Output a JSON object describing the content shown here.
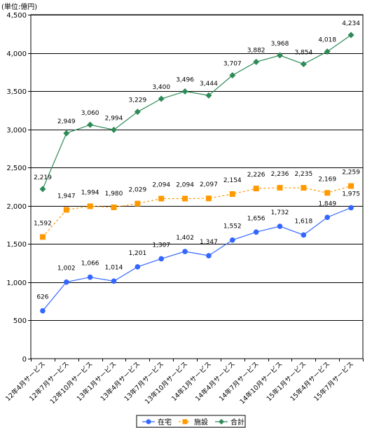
{
  "chart_data": {
    "type": "line",
    "unit_label": "(単位:億円)",
    "categories": [
      "12年4月サービス",
      "12年7月サービス",
      "12年10月サービス",
      "13年1月サービス",
      "13年4月サービス",
      "13年7月サービス",
      "13年10月サービス",
      "14年1月サービス",
      "14年4月サービス",
      "14年7月サービス",
      "14年10月サービス",
      "15年1月サービス",
      "15年4月サービス",
      "15年7月サービス"
    ],
    "ylim": [
      0,
      4500
    ],
    "yticks": [
      0,
      500,
      1000,
      1500,
      2000,
      2500,
      3000,
      3500,
      4000,
      4500
    ],
    "grid": true,
    "legend_position": "bottom",
    "series": [
      {
        "name": "在宅",
        "color": "#3366ff",
        "marker": "circle",
        "line_style": "solid",
        "values": [
          626,
          1002,
          1066,
          1014,
          1201,
          1307,
          1402,
          1347,
          1552,
          1656,
          1732,
          1618,
          1849,
          1975
        ],
        "labels": [
          "626",
          "1,002",
          "1,066",
          "1,014",
          "1,201",
          "1,307",
          "1,402",
          "1,347",
          "1,552",
          "1,656",
          "1,732",
          "1,618",
          "1,849",
          "1,975"
        ]
      },
      {
        "name": "施設",
        "color": "#ff9900",
        "marker": "square",
        "line_style": "dashed",
        "values": [
          1592,
          1947,
          1994,
          1980,
          2029,
          2094,
          2094,
          2097,
          2154,
          2226,
          2236,
          2235,
          2169,
          2259
        ],
        "labels": [
          "1,592",
          "1,947",
          "1,994",
          "1,980",
          "2,029",
          "2,094",
          "2,094",
          "2,097",
          "2,154",
          "2,226",
          "2,236",
          "2,235",
          "2,169",
          "2,259"
        ]
      },
      {
        "name": "合計",
        "color": "#2e8b57",
        "marker": "diamond",
        "line_style": "solid",
        "values": [
          2219,
          2949,
          3060,
          2994,
          3229,
          3400,
          3496,
          3444,
          3707,
          3882,
          3968,
          3854,
          4018,
          4234
        ],
        "labels": [
          "2,219",
          "2,949",
          "3,060",
          "2,994",
          "3,229",
          "3,400",
          "3,496",
          "3,444",
          "3,707",
          "3,882",
          "3,968",
          "3,854",
          "4,018",
          "4,234"
        ]
      }
    ]
  }
}
